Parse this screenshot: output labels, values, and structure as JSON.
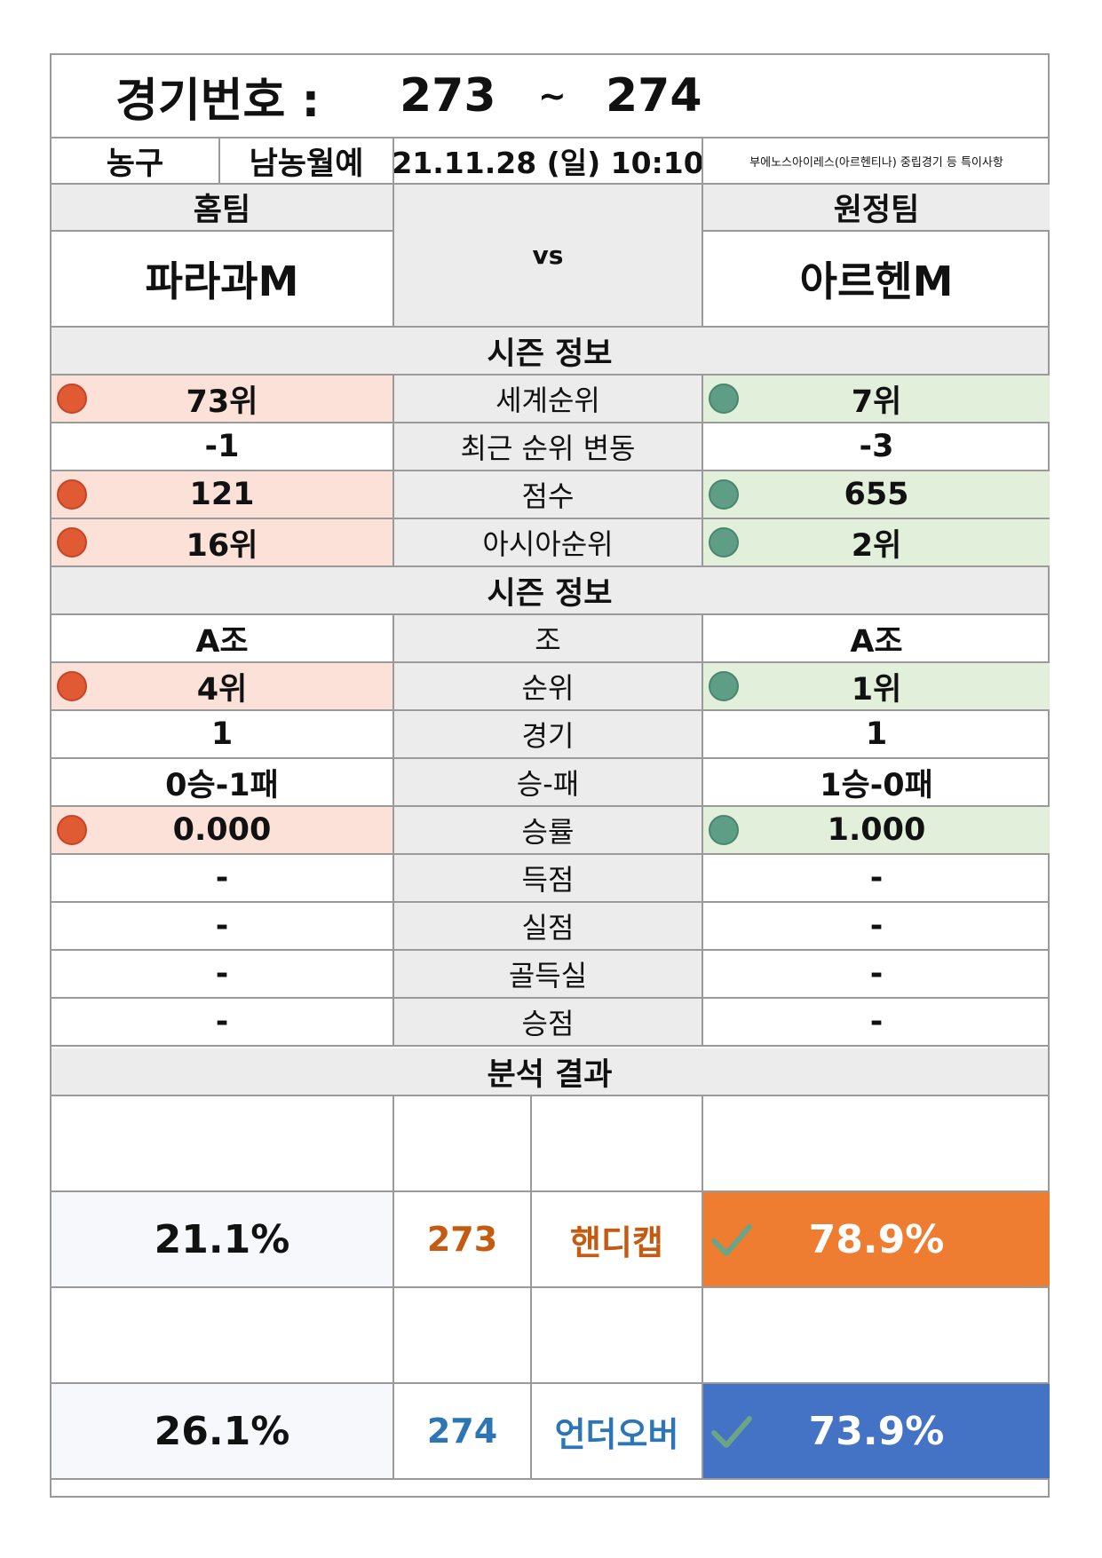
{
  "header": {
    "label": "경기번호 :",
    "from": "273",
    "sep": "~",
    "to": "274"
  },
  "info": {
    "sport": "농구",
    "league": "남농월예",
    "datetime": "21.11.28 (일) 10:10",
    "note": "부에노스아이레스(아르헨티나) 중립경기 등 특이사항"
  },
  "teams": {
    "home_label": "홈팀",
    "away_label": "원정팀",
    "home_name": "파라과M",
    "away_name": "아르헨M",
    "vs": "vs"
  },
  "season1": {
    "title": "시즌 정보",
    "rows": [
      {
        "label": "세계순위",
        "home": "73위",
        "away": "7위",
        "marked": true
      },
      {
        "label": "최근 순위 변동",
        "home": "-1",
        "away": "-3",
        "marked": false
      },
      {
        "label": "점수",
        "home": "121",
        "away": "655",
        "marked": true
      },
      {
        "label": "아시아순위",
        "home": "16위",
        "away": "2위",
        "marked": true
      }
    ]
  },
  "season2": {
    "title": "시즌 정보",
    "rows": [
      {
        "label": "조",
        "home": "A조",
        "away": "A조",
        "marked": false
      },
      {
        "label": "순위",
        "home": "4위",
        "away": "1위",
        "marked": true
      },
      {
        "label": "경기",
        "home": "1",
        "away": "1",
        "marked": false
      },
      {
        "label": "승-패",
        "home": "0승-1패",
        "away": "1승-0패",
        "marked": false
      },
      {
        "label": "승률",
        "home": "0.000",
        "away": "1.000",
        "marked": true
      },
      {
        "label": "득점",
        "home": "-",
        "away": "-",
        "marked": false
      },
      {
        "label": "실점",
        "home": "-",
        "away": "-",
        "marked": false
      },
      {
        "label": "골득실",
        "home": "-",
        "away": "-",
        "marked": false
      },
      {
        "label": "승점",
        "home": "-",
        "away": "-",
        "marked": false
      }
    ]
  },
  "analysis": {
    "title": "분석 결과",
    "results": [
      {
        "home_pct": "21.1%",
        "code": "273",
        "type": "핸디캡",
        "away_pct": "78.9%",
        "code_color": "#c55a11",
        "fill": "#ee7d32"
      },
      {
        "home_pct": "26.1%",
        "code": "274",
        "type": "언더오버",
        "away_pct": "73.9%",
        "code_color": "#2e75b6",
        "fill": "#4472c4"
      }
    ]
  },
  "colors": {
    "home_marker": "#e05a33",
    "away_marker": "#5e9e87",
    "check": "#6aa586"
  },
  "icons": {
    "marker": "circle",
    "check": "check-icon"
  }
}
